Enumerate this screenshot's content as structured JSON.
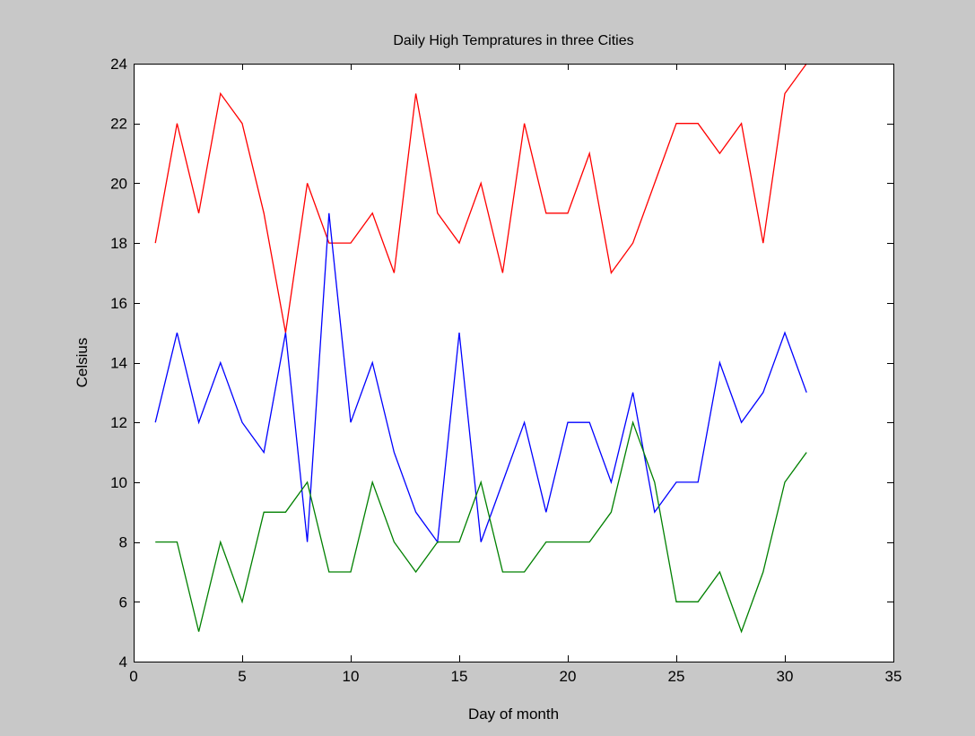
{
  "chart_data": {
    "type": "line",
    "title": "Daily High Tempratures in three Cities",
    "xlabel": "Day of month",
    "ylabel": "Celsius",
    "xlim": [
      0,
      35
    ],
    "ylim": [
      4,
      24
    ],
    "xticks": [
      0,
      5,
      10,
      15,
      20,
      25,
      30,
      35
    ],
    "yticks": [
      4,
      6,
      8,
      10,
      12,
      14,
      16,
      18,
      20,
      22,
      24
    ],
    "grid": false,
    "x": [
      1,
      2,
      3,
      4,
      5,
      6,
      7,
      8,
      9,
      10,
      11,
      12,
      13,
      14,
      15,
      16,
      17,
      18,
      19,
      20,
      21,
      22,
      23,
      24,
      25,
      26,
      27,
      28,
      29,
      30,
      31
    ],
    "series": [
      {
        "color": "#ff0000",
        "values": [
          18,
          22,
          19,
          23,
          22,
          19,
          15,
          20,
          18,
          18,
          19,
          17,
          23,
          19,
          18,
          20,
          17,
          22,
          19,
          19,
          21,
          17,
          18,
          20,
          22,
          22,
          21,
          22,
          18,
          23,
          24
        ]
      },
      {
        "color": "#0000ff",
        "values": [
          12,
          15,
          12,
          14,
          12,
          11,
          15,
          8,
          19,
          12,
          14,
          11,
          9,
          8,
          15,
          8,
          10,
          12,
          9,
          12,
          12,
          10,
          13,
          9,
          10,
          10,
          14,
          12,
          13,
          15,
          13
        ]
      },
      {
        "color": "#008000",
        "values": [
          8,
          8,
          5,
          8,
          6,
          9,
          9,
          10,
          7,
          7,
          10,
          8,
          7,
          8,
          8,
          10,
          7,
          7,
          8,
          8,
          8,
          9,
          12,
          10,
          6,
          6,
          7,
          5,
          7,
          10,
          11
        ]
      }
    ]
  }
}
